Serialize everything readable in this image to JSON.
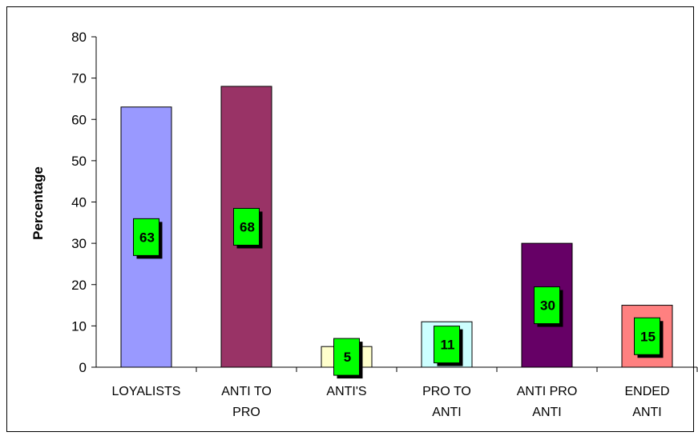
{
  "chart_data": {
    "type": "bar",
    "title": "",
    "xlabel": "",
    "ylabel": "Percentage",
    "ylim": [
      0,
      80
    ],
    "yticks": [
      0,
      10,
      20,
      30,
      40,
      50,
      60,
      70,
      80
    ],
    "grid": false,
    "legend": "none",
    "categories": [
      [
        "LOYALISTS"
      ],
      [
        "ANTI TO",
        "PRO"
      ],
      [
        "ANTI'S"
      ],
      [
        "PRO TO",
        "ANTI"
      ],
      [
        "ANTI PRO",
        "ANTI"
      ],
      [
        "ENDED",
        "ANTI"
      ]
    ],
    "values": [
      63,
      68,
      5,
      11,
      30,
      15
    ],
    "data_labels": [
      "63",
      "68",
      "5",
      "11",
      "30",
      "15"
    ],
    "bar_colors": [
      "#9999ff",
      "#993366",
      "#ffffcc",
      "#ccffff",
      "#660066",
      "#ff8080"
    ],
    "label_box_color": "#00ff00"
  }
}
